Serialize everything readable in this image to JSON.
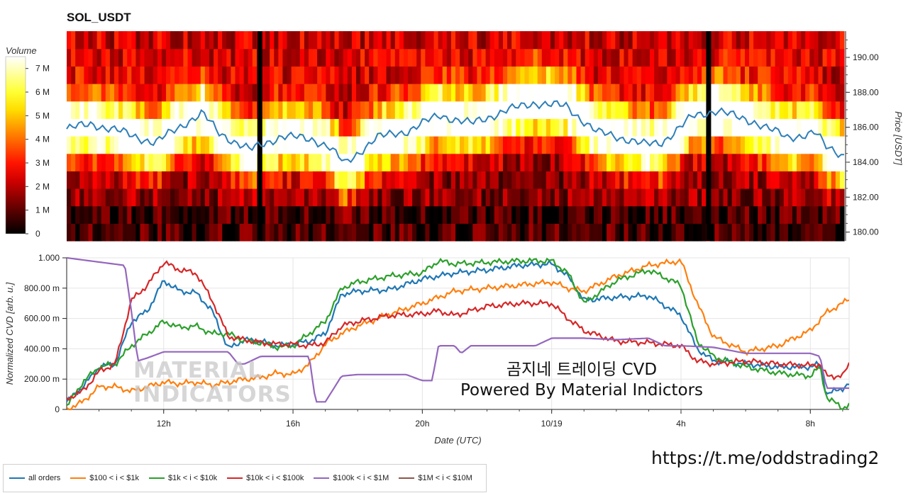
{
  "title": "SOL_USDT",
  "annotation": {
    "line1": "곰지네 트레이딩 CVD",
    "line2": "Powered By Material Indictors"
  },
  "url": "https://t.me/oddstrading2",
  "watermark": {
    "line1": "MATERIAL",
    "line2": "INDICATORS"
  },
  "legend": [
    {
      "label": "all orders",
      "color": "#1f77b4"
    },
    {
      "label": "$100 < i < $1k",
      "color": "#ff7f0e"
    },
    {
      "label": "$1k < i < $10k",
      "color": "#2ca02c"
    },
    {
      "label": "$10k < i < $100k",
      "color": "#d62728"
    },
    {
      "label": "$100k < i < $1M",
      "color": "#9467bd"
    },
    {
      "label": "$1M < i < $10M",
      "color": "#8c564b"
    }
  ],
  "chart_data": [
    {
      "type": "heatmap",
      "title": "SOL_USDT",
      "colorbar": {
        "label": "Volume",
        "ticks": [
          "0",
          "1 M",
          "2 M",
          "3 M",
          "4 M",
          "5 M",
          "6 M",
          "7 M"
        ],
        "range": [
          0,
          7.5
        ]
      },
      "y_axis": {
        "label": "Price [USDT]",
        "ticks": [
          "180.00",
          "182.00",
          "184.00",
          "186.00",
          "188.00",
          "190.00"
        ],
        "range": [
          179.5,
          191.5
        ]
      },
      "time_range_hours": [
        8.2,
        32.8
      ],
      "gaps_hours": [
        14.3,
        28.5
      ],
      "price_line_color": "#2e7fb8",
      "price_series": {
        "t": [
          8.2,
          9.0,
          10.0,
          11.0,
          12.0,
          12.5,
          13.0,
          14.0,
          15.0,
          16.0,
          16.5,
          17.0,
          18.0,
          19.0,
          20.0,
          21.0,
          22.0,
          23.0,
          24.0,
          25.0,
          26.0,
          26.5,
          27.0,
          28.0,
          28.8,
          29.5,
          30.0,
          31.0,
          31.9,
          32.2,
          32.8
        ],
        "price": [
          185.9,
          186.2,
          185.7,
          185.1,
          186.3,
          186.8,
          185.7,
          184.7,
          185.5,
          185.3,
          184.9,
          183.9,
          185.4,
          185.8,
          186.7,
          186.2,
          186.9,
          187.4,
          187.2,
          185.7,
          185.3,
          185.0,
          185.1,
          186.6,
          187.0,
          186.5,
          186.3,
          185.4,
          185.7,
          184.9,
          184.4
        ]
      }
    },
    {
      "type": "line",
      "xlabel": "Date (UTC)",
      "ylabel": "Normalized CVD [arb. u.]",
      "x_range_hours": [
        9.0,
        33.2
      ],
      "x_ticks": [
        {
          "t": 12,
          "label": "12h"
        },
        {
          "t": 16,
          "label": "16h"
        },
        {
          "t": 20,
          "label": "20h"
        },
        {
          "t": 24,
          "label": "10/19"
        },
        {
          "t": 28,
          "label": "4h"
        },
        {
          "t": 32,
          "label": "8h"
        }
      ],
      "ylim": [
        0,
        1
      ],
      "y_ticks": [
        "0",
        "200.00 m",
        "400.00 m",
        "600.00 m",
        "800.00 m",
        "1.000"
      ],
      "grid": true,
      "series": [
        {
          "name": "all orders",
          "color": "#1f77b4",
          "t": [
            9.0,
            9.5,
            10.0,
            10.5,
            11.0,
            11.5,
            12.0,
            12.5,
            13.0,
            13.5,
            14.0,
            14.5,
            15.0,
            15.5,
            16.0,
            16.5,
            17.0,
            17.5,
            18.0,
            19.0,
            20.0,
            21.0,
            22.0,
            23.0,
            24.0,
            24.5,
            25.0,
            26.0,
            27.0,
            28.0,
            28.5,
            29.0,
            30.0,
            31.0,
            32.0,
            32.3,
            32.5,
            33.0,
            33.2
          ],
          "values": [
            0.05,
            0.15,
            0.28,
            0.3,
            0.58,
            0.65,
            0.85,
            0.78,
            0.77,
            0.65,
            0.4,
            0.46,
            0.45,
            0.42,
            0.43,
            0.45,
            0.5,
            0.76,
            0.78,
            0.79,
            0.86,
            0.9,
            0.92,
            0.95,
            0.96,
            0.88,
            0.72,
            0.74,
            0.75,
            0.62,
            0.4,
            0.32,
            0.3,
            0.28,
            0.28,
            0.3,
            0.1,
            0.14,
            0.17
          ]
        },
        {
          "name": "$100 < i < $1k",
          "color": "#ff7f0e",
          "t": [
            9.0,
            9.5,
            10.0,
            10.5,
            11.0,
            11.5,
            12.0,
            12.5,
            13.0,
            13.5,
            14.0,
            14.5,
            15.0,
            15.5,
            16.0,
            16.5,
            17.0,
            17.5,
            18.0,
            19.0,
            20.0,
            21.0,
            22.0,
            23.0,
            24.0,
            24.5,
            25.0,
            26.0,
            27.0,
            28.0,
            28.5,
            29.0,
            30.0,
            31.0,
            32.0,
            32.5,
            33.0,
            33.2
          ],
          "values": [
            0.0,
            0.05,
            0.15,
            0.15,
            0.12,
            0.15,
            0.18,
            0.17,
            0.18,
            0.16,
            0.18,
            0.2,
            0.21,
            0.24,
            0.23,
            0.3,
            0.43,
            0.5,
            0.55,
            0.63,
            0.7,
            0.78,
            0.8,
            0.82,
            0.84,
            0.8,
            0.78,
            0.88,
            0.95,
            0.98,
            0.7,
            0.48,
            0.38,
            0.42,
            0.52,
            0.64,
            0.7,
            0.73
          ]
        },
        {
          "name": "$1k < i < $10k",
          "color": "#2ca02c",
          "t": [
            9.0,
            9.5,
            10.0,
            10.5,
            11.0,
            11.5,
            12.0,
            12.5,
            13.0,
            13.5,
            14.0,
            14.5,
            15.0,
            15.5,
            16.0,
            16.5,
            17.0,
            17.5,
            18.0,
            19.0,
            20.0,
            20.5,
            21.0,
            22.0,
            23.0,
            24.0,
            24.5,
            25.0,
            26.0,
            27.0,
            28.0,
            28.5,
            29.0,
            30.0,
            31.0,
            32.0,
            32.3,
            32.5,
            33.0,
            33.2
          ],
          "values": [
            0.02,
            0.18,
            0.28,
            0.3,
            0.42,
            0.5,
            0.58,
            0.54,
            0.55,
            0.5,
            0.5,
            0.45,
            0.44,
            0.41,
            0.42,
            0.5,
            0.58,
            0.8,
            0.84,
            0.88,
            0.9,
            0.98,
            0.96,
            0.97,
            0.98,
            0.98,
            0.9,
            0.7,
            0.85,
            0.92,
            0.82,
            0.45,
            0.35,
            0.28,
            0.24,
            0.22,
            0.28,
            0.08,
            0.01,
            0.03
          ]
        },
        {
          "name": "$10k < i < $100k",
          "color": "#d62728",
          "t": [
            9.0,
            9.5,
            10.0,
            10.5,
            11.0,
            11.5,
            12.0,
            12.2,
            12.5,
            13.0,
            13.5,
            14.0,
            14.5,
            15.0,
            15.5,
            16.0,
            16.5,
            17.0,
            17.5,
            18.0,
            19.0,
            20.0,
            20.5,
            21.0,
            22.0,
            23.0,
            24.0,
            24.5,
            25.0,
            26.0,
            27.0,
            28.0,
            28.5,
            29.0,
            30.0,
            31.0,
            32.0,
            32.3,
            32.5,
            33.0,
            33.2
          ],
          "values": [
            0.07,
            0.12,
            0.25,
            0.3,
            0.72,
            0.82,
            0.97,
            0.95,
            0.92,
            0.9,
            0.72,
            0.48,
            0.46,
            0.44,
            0.43,
            0.43,
            0.42,
            0.44,
            0.55,
            0.58,
            0.62,
            0.63,
            0.65,
            0.62,
            0.68,
            0.7,
            0.7,
            0.6,
            0.52,
            0.45,
            0.44,
            0.42,
            0.32,
            0.3,
            0.32,
            0.3,
            0.29,
            0.3,
            0.22,
            0.22,
            0.3
          ]
        },
        {
          "name": "$100k < i < $1M",
          "color": "#9467bd",
          "t": [
            9.0,
            10.8,
            11.0,
            11.2,
            11.5,
            12.0,
            13.0,
            14.0,
            14.3,
            14.5,
            15.0,
            15.5,
            16.0,
            16.5,
            16.7,
            17.0,
            17.5,
            18.0,
            19.0,
            19.5,
            20.0,
            20.3,
            20.5,
            21.0,
            21.2,
            21.5,
            22.0,
            23.0,
            23.5,
            24.0,
            25.0,
            26.0,
            27.0,
            27.5,
            28.0,
            29.0,
            30.0,
            31.0,
            32.0,
            32.3,
            32.5,
            33.0,
            33.2
          ],
          "values": [
            1.0,
            0.95,
            0.65,
            0.32,
            0.34,
            0.38,
            0.38,
            0.38,
            0.3,
            0.3,
            0.35,
            0.35,
            0.35,
            0.35,
            0.05,
            0.05,
            0.22,
            0.23,
            0.23,
            0.23,
            0.19,
            0.19,
            0.42,
            0.42,
            0.37,
            0.42,
            0.42,
            0.42,
            0.42,
            0.47,
            0.47,
            0.46,
            0.47,
            0.42,
            0.42,
            0.41,
            0.37,
            0.37,
            0.37,
            0.35,
            0.14,
            0.14,
            0.14
          ]
        },
        {
          "name": "$1M < i < $10M",
          "color": "#8c564b",
          "t": [],
          "values": []
        }
      ]
    }
  ]
}
